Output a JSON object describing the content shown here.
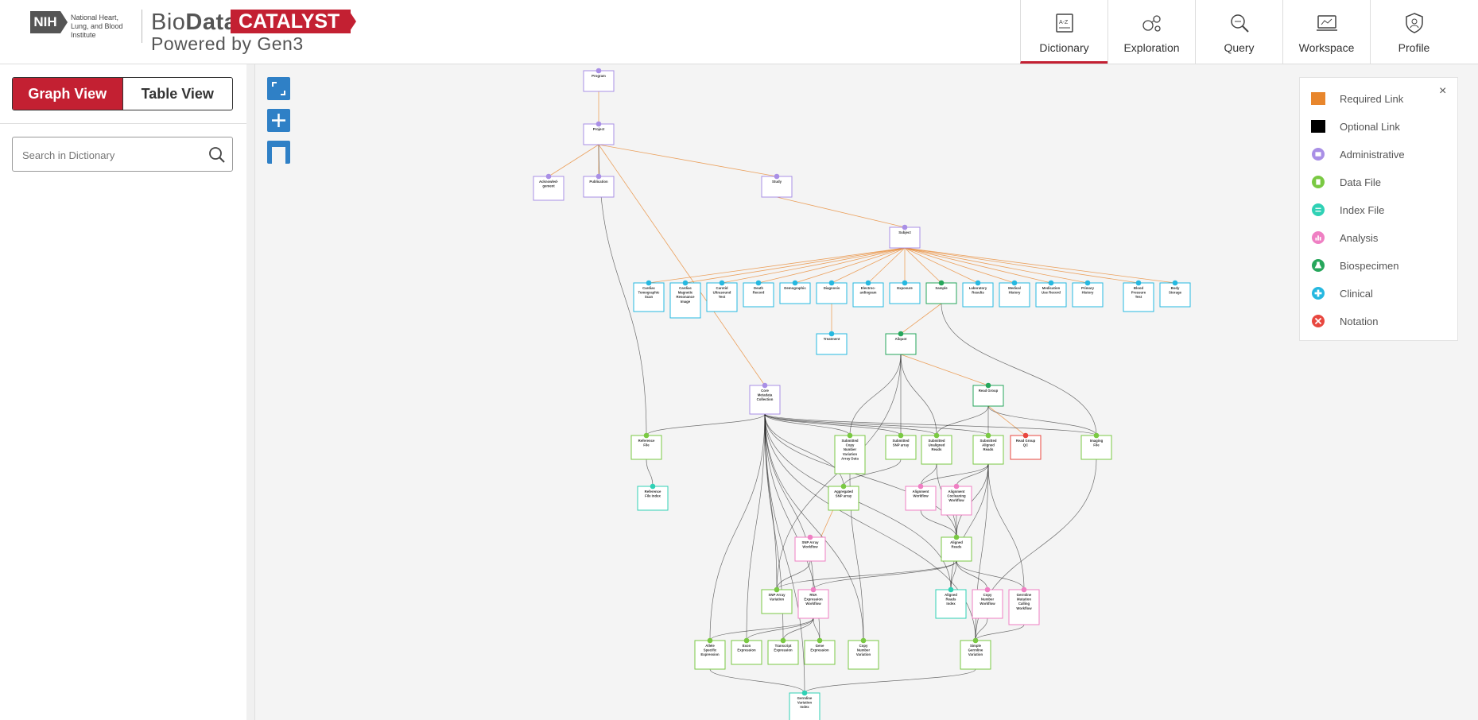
{
  "header": {
    "nih": "NIH",
    "nih_institute": "National Heart, Lung, and Blood Institute",
    "brand_bio": "Bio",
    "brand_data": "Data",
    "brand_catalyst": "CATALYST",
    "powered_by": "Powered by Gen3",
    "nav": [
      {
        "label": "Dictionary",
        "icon": "dictionary-icon",
        "active": true
      },
      {
        "label": "Exploration",
        "icon": "exploration-icon"
      },
      {
        "label": "Query",
        "icon": "query-icon"
      },
      {
        "label": "Workspace",
        "icon": "workspace-icon"
      },
      {
        "label": "Profile",
        "icon": "profile-icon"
      }
    ]
  },
  "sidebar": {
    "graph_view": "Graph View",
    "table_view": "Table View",
    "search_placeholder": "Search in Dictionary"
  },
  "legend": {
    "close": "×",
    "items": [
      {
        "label": "Required Link",
        "color": "#e8862c"
      },
      {
        "label": "Optional Link",
        "color": "#000000"
      },
      {
        "label": "Administrative",
        "color": "#a98fe6"
      },
      {
        "label": "Data File",
        "color": "#7ac943"
      },
      {
        "label": "Index File",
        "color": "#2fd1b5"
      },
      {
        "label": "Analysis",
        "color": "#ef7fc3"
      },
      {
        "label": "Biospecimen",
        "color": "#26a65b"
      },
      {
        "label": "Clinical",
        "color": "#26b8e0"
      },
      {
        "label": "Notation",
        "color": "#e8473f"
      }
    ]
  },
  "graph": {
    "nodes": [
      {
        "id": "program",
        "l1": "Program",
        "t": "admin"
      },
      {
        "id": "project",
        "l1": "Project",
        "t": "admin"
      },
      {
        "id": "ack",
        "l1": "Acknowled-",
        "l2": "gement",
        "t": "admin"
      },
      {
        "id": "pub",
        "l1": "Publication",
        "t": "admin"
      },
      {
        "id": "study",
        "l1": "Study",
        "t": "admin"
      },
      {
        "id": "subject",
        "l1": "Subject",
        "t": "admin"
      },
      {
        "id": "cts",
        "l1": "Cardiac",
        "l2": "Tomographic",
        "l3": "Scan",
        "t": "clinical"
      },
      {
        "id": "cmri",
        "l1": "Cardiac",
        "l2": "Magnetic",
        "l3": "Resonance",
        "l4": "Image",
        "t": "clinical"
      },
      {
        "id": "cut",
        "l1": "Carotid",
        "l2": "Ultrasound",
        "l3": "Test",
        "t": "clinical"
      },
      {
        "id": "death",
        "l1": "Death",
        "l2": "Record",
        "t": "clinical"
      },
      {
        "id": "demo",
        "l1": "Demographic",
        "t": "clinical"
      },
      {
        "id": "diag",
        "l1": "Diagnosis",
        "t": "clinical"
      },
      {
        "id": "ecg",
        "l1": "Electroc-",
        "l2": "ardiogram",
        "t": "clinical"
      },
      {
        "id": "expo",
        "l1": "Exposure",
        "t": "clinical"
      },
      {
        "id": "sample",
        "l1": "Sample",
        "t": "bio"
      },
      {
        "id": "lab",
        "l1": "Laboratory",
        "l2": "Results",
        "t": "clinical"
      },
      {
        "id": "medh",
        "l1": "Medical",
        "l2": "History",
        "t": "clinical"
      },
      {
        "id": "medu",
        "l1": "Medication",
        "l2": "Use Record",
        "t": "clinical"
      },
      {
        "id": "prim",
        "l1": "Primary",
        "l2": "History",
        "t": "clinical"
      },
      {
        "id": "bp",
        "l1": "Blood",
        "l2": "Pressure",
        "l3": "Test",
        "t": "clinical"
      },
      {
        "id": "bodys",
        "l1": "Body",
        "l2": "Storage",
        "t": "clinical"
      },
      {
        "id": "treat",
        "l1": "Treatment",
        "t": "clinical"
      },
      {
        "id": "aliquot",
        "l1": "Aliquot",
        "t": "bio"
      },
      {
        "id": "core",
        "l1": "Core",
        "l2": "Metadata",
        "l3": "Collection",
        "t": "admin"
      },
      {
        "id": "rg",
        "l1": "Read Group",
        "t": "bio"
      },
      {
        "id": "reff",
        "l1": "Reference",
        "l2": "File",
        "t": "data"
      },
      {
        "id": "scnv",
        "l1": "Submitted",
        "l2": "Copy",
        "l3": "Number",
        "l4": "Variation",
        "l5": "Array Data",
        "t": "data"
      },
      {
        "id": "ssnp",
        "l1": "Submitted",
        "l2": "SNP array",
        "t": "data"
      },
      {
        "id": "sur",
        "l1": "Submitted",
        "l2": "Unaligned",
        "l3": "Reads",
        "t": "data"
      },
      {
        "id": "sar",
        "l1": "Submitted",
        "l2": "Aligned",
        "l3": "Reads",
        "t": "data"
      },
      {
        "id": "rgqc",
        "l1": "Read Group",
        "l2": "QC",
        "t": "notation"
      },
      {
        "id": "img",
        "l1": "Imaging",
        "l2": "File",
        "t": "data"
      },
      {
        "id": "refidx",
        "l1": "Reference",
        "l2": "File Index",
        "t": "index"
      },
      {
        "id": "asnp",
        "l1": "Aggregated",
        "l2": "SNP array",
        "t": "data"
      },
      {
        "id": "alwf",
        "l1": "Alignment",
        "l2": "Workflow",
        "t": "analysis"
      },
      {
        "id": "acwf",
        "l1": "Alignment",
        "l2": "Cocleaning",
        "l3": "Workflow",
        "t": "analysis"
      },
      {
        "id": "snpwf",
        "l1": "SNP Array",
        "l2": "Workflow",
        "t": "analysis"
      },
      {
        "id": "ar",
        "l1": "Aligned",
        "l2": "Reads",
        "t": "data"
      },
      {
        "id": "snpav",
        "l1": "SNP Array",
        "l2": "Variation",
        "t": "data"
      },
      {
        "id": "rnawf",
        "l1": "RNA",
        "l2": "Expression",
        "l3": "Workflow",
        "t": "analysis"
      },
      {
        "id": "ari",
        "l1": "Aligned",
        "l2": "Reads",
        "l3": "Index",
        "t": "index"
      },
      {
        "id": "cnwf",
        "l1": "Copy",
        "l2": "Number",
        "l3": "Workflow",
        "t": "analysis"
      },
      {
        "id": "smwf",
        "l1": "Germline",
        "l2": "Mutation",
        "l3": "Calling",
        "l4": "Workflow",
        "t": "analysis"
      },
      {
        "id": "ase",
        "l1": "Allele",
        "l2": "Specific",
        "l3": "Expression",
        "t": "data"
      },
      {
        "id": "exon",
        "l1": "Exon",
        "l2": "Expression",
        "t": "data"
      },
      {
        "id": "transe",
        "l1": "Transcript",
        "l2": "Expression",
        "t": "data"
      },
      {
        "id": "genee",
        "l1": "Gene",
        "l2": "Expression",
        "t": "data"
      },
      {
        "id": "cnvar",
        "l1": "Copy",
        "l2": "Number",
        "l3": "Variation",
        "t": "data"
      },
      {
        "id": "simple",
        "l1": "Simple",
        "l2": "Germline",
        "l3": "Variation",
        "t": "data"
      },
      {
        "id": "gvi",
        "l1": "Germline",
        "l2": "Variation",
        "l3": "Index",
        "t": "index"
      }
    ]
  }
}
